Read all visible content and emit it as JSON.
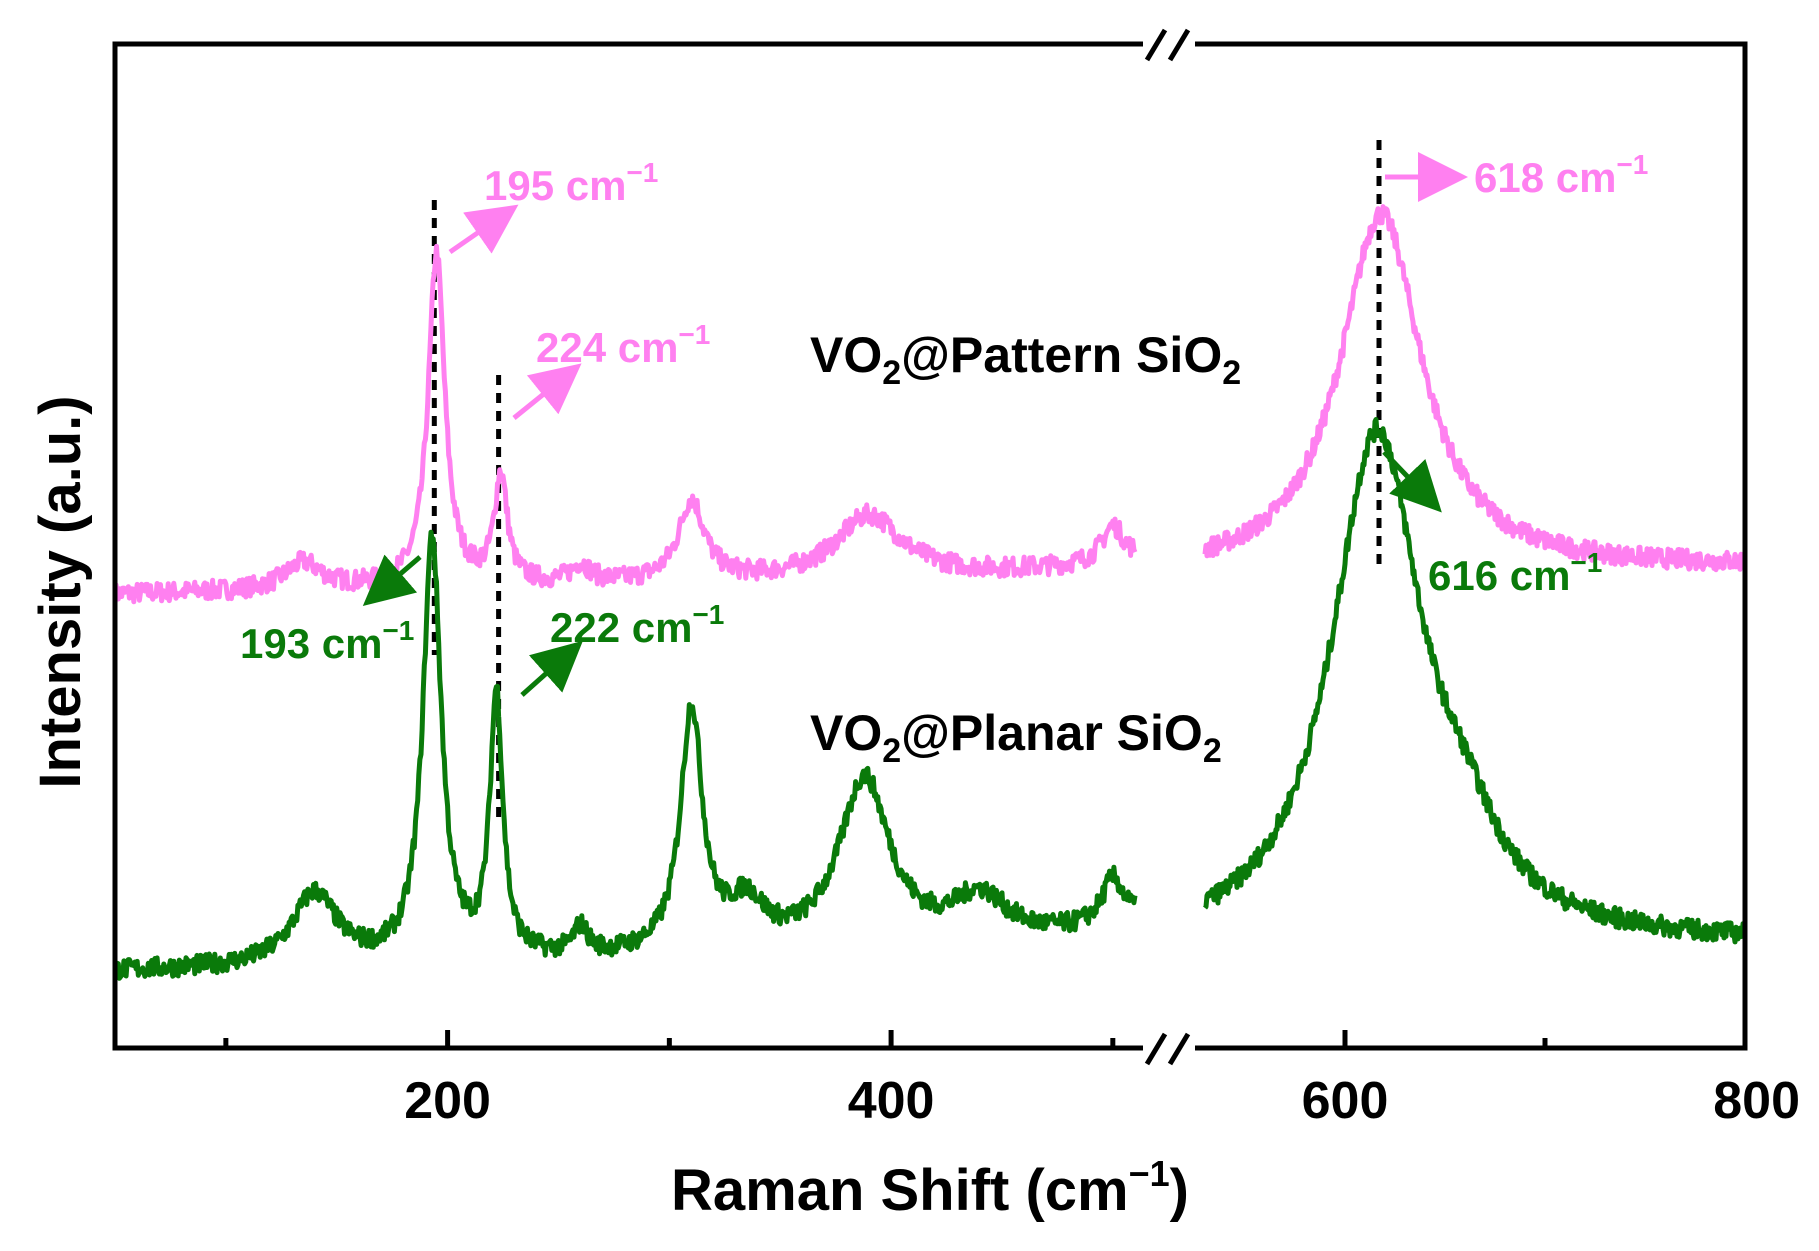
{
  "chart_data": {
    "type": "line",
    "xlabel": "Raman Shift (cm",
    "xlabel_sup": "−1",
    "xlabel_close": ")",
    "ylabel": "Intensity (a.u.)",
    "xlim": [
      50,
      800
    ],
    "axis_break": [
      510,
      530
    ],
    "x_ticks": [
      200,
      400,
      600,
      800
    ],
    "x_minor_ticks": [
      100,
      300,
      500,
      700
    ],
    "colors": {
      "pattern": "#ff80f0",
      "planar": "#0a7a0a",
      "guide": "#000000"
    },
    "series": [
      {
        "key": "pattern",
        "label_main": "VO",
        "label_sub": "2",
        "label_mid": "@Pattern SiO",
        "label_sub2": "2",
        "baseline": 0.45,
        "peaks": [
          {
            "x": 135,
            "h": 0.03,
            "w": 10
          },
          {
            "x": 195,
            "h": 0.37,
            "w": 4.5
          },
          {
            "x": 224,
            "h": 0.12,
            "w": 3.5
          },
          {
            "x": 260,
            "h": 0.02,
            "w": 5
          },
          {
            "x": 310,
            "h": 0.09,
            "w": 7
          },
          {
            "x": 390,
            "h": 0.07,
            "w": 18
          },
          {
            "x": 500,
            "h": 0.04,
            "w": 6
          },
          {
            "x": 618,
            "h": 0.4,
            "w": 25
          }
        ]
      },
      {
        "key": "planar",
        "label_main": "VO",
        "label_sub": "2",
        "label_mid": "@Planar SiO",
        "label_sub2": "2",
        "baseline": 0.03,
        "peaks": [
          {
            "x": 140,
            "h": 0.08,
            "w": 12
          },
          {
            "x": 193,
            "h": 0.47,
            "w": 5
          },
          {
            "x": 222,
            "h": 0.29,
            "w": 3.5
          },
          {
            "x": 260,
            "h": 0.03,
            "w": 4
          },
          {
            "x": 310,
            "h": 0.27,
            "w": 6
          },
          {
            "x": 335,
            "h": 0.05,
            "w": 10
          },
          {
            "x": 388,
            "h": 0.19,
            "w": 14
          },
          {
            "x": 440,
            "h": 0.05,
            "w": 15
          },
          {
            "x": 500,
            "h": 0.05,
            "w": 6
          },
          {
            "x": 616,
            "h": 0.57,
            "w": 28
          },
          {
            "x": 660,
            "h": 0.06,
            "w": 20
          }
        ]
      }
    ],
    "annotations": [
      {
        "series": "pattern",
        "value": "195 cm",
        "sup": "−1"
      },
      {
        "series": "pattern",
        "value": "224 cm",
        "sup": "−1"
      },
      {
        "series": "pattern",
        "value": "618 cm",
        "sup": "−1"
      },
      {
        "series": "planar",
        "value": "193 cm",
        "sup": "−1"
      },
      {
        "series": "planar",
        "value": "222 cm",
        "sup": "−1"
      },
      {
        "series": "planar",
        "value": "616 cm",
        "sup": "−1"
      }
    ],
    "peak_guides": [
      194,
      223,
      617
    ]
  }
}
